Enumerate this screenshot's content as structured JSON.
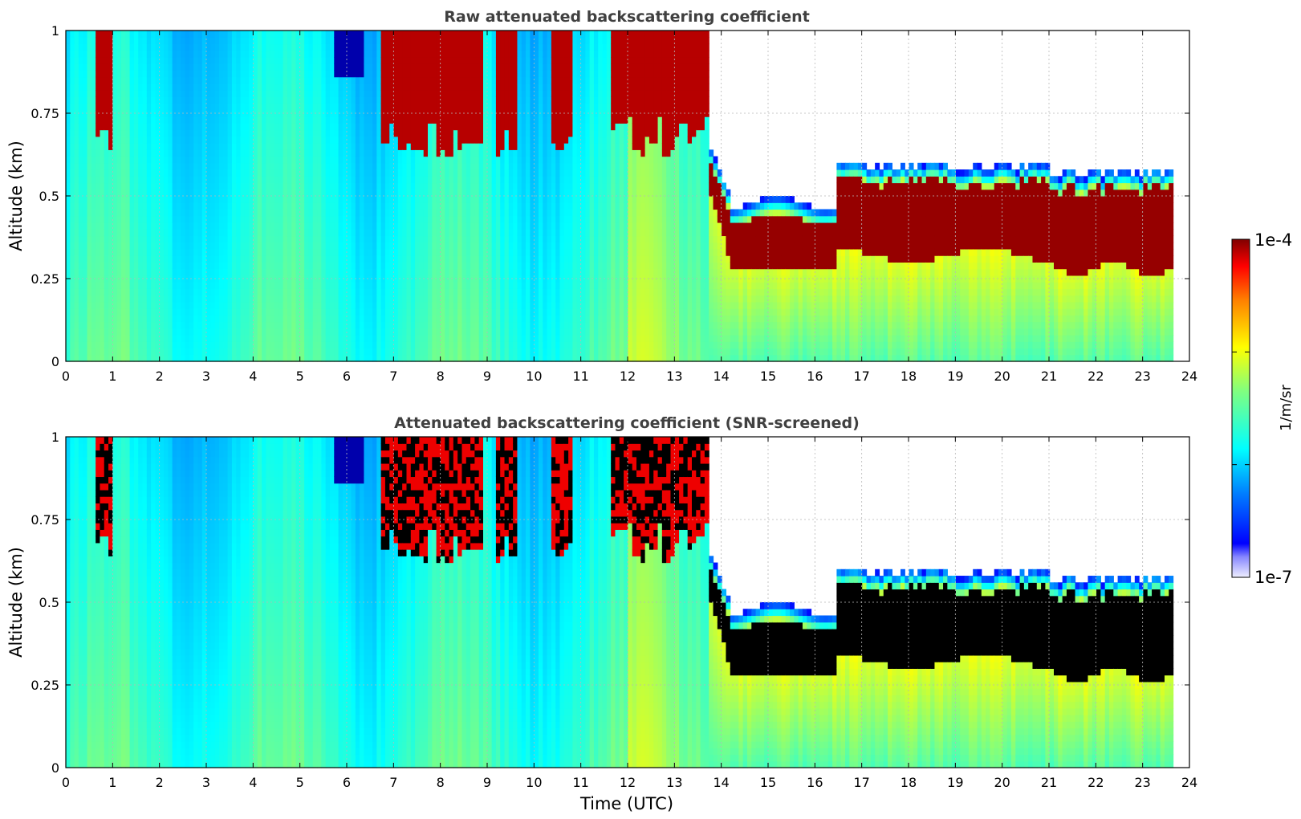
{
  "chart_data": [
    {
      "type": "heatmap",
      "title": "Raw attenuated backscattering coefficient",
      "xlabel": "",
      "ylabel": "Altitude (km)",
      "xlim": [
        0,
        24
      ],
      "ylim": [
        0,
        1
      ],
      "xticks": [
        "0",
        "1",
        "2",
        "3",
        "4",
        "5",
        "6",
        "7",
        "8",
        "9",
        "10",
        "11",
        "12",
        "13",
        "14",
        "15",
        "16",
        "17",
        "18",
        "19",
        "20",
        "21",
        "22",
        "23",
        "24"
      ],
      "yticks": [
        "0",
        "0.25",
        "0.5",
        "0.75",
        "1"
      ],
      "grid": true,
      "data_end_time": 23.65,
      "screened": false
    },
    {
      "type": "heatmap",
      "title": "Attenuated backscattering coefficient (SNR-screened)",
      "xlabel": "Time (UTC)",
      "ylabel": "Altitude (km)",
      "xlim": [
        0,
        24
      ],
      "ylim": [
        0,
        1
      ],
      "xticks": [
        "0",
        "1",
        "2",
        "3",
        "4",
        "5",
        "6",
        "7",
        "8",
        "9",
        "10",
        "11",
        "12",
        "13",
        "14",
        "15",
        "16",
        "17",
        "18",
        "19",
        "20",
        "21",
        "22",
        "23",
        "24"
      ],
      "yticks": [
        "0",
        "0.25",
        "0.5",
        "0.75",
        "1"
      ],
      "grid": true,
      "data_end_time": 23.65,
      "screened": true
    }
  ],
  "colorbar": {
    "min_label": "1e-7",
    "max_label": "1e-4",
    "label": "1/m/sr",
    "colormap": "jet",
    "scale": "log"
  }
}
